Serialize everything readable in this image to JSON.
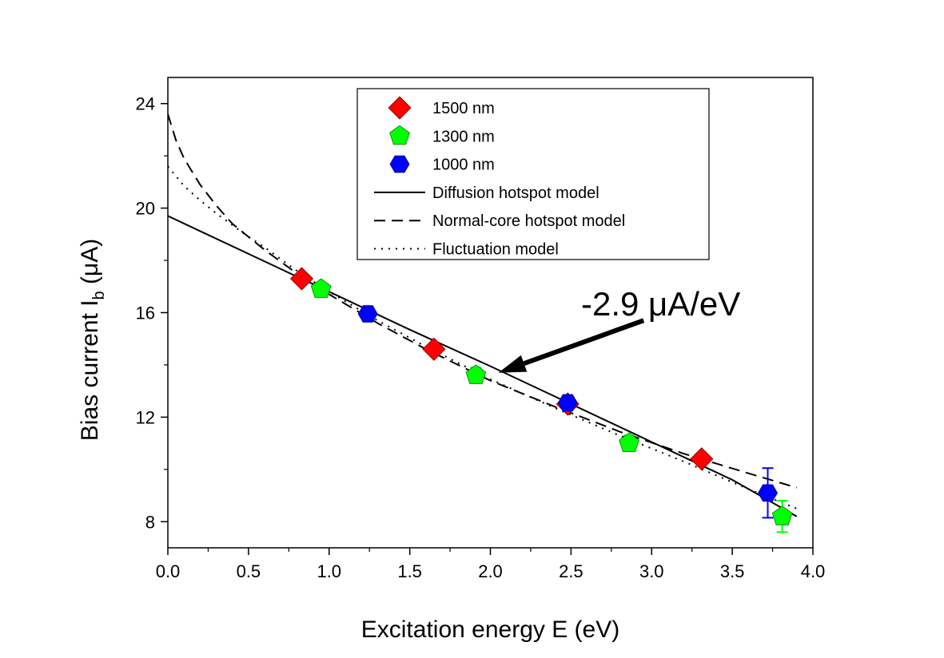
{
  "chart_data": {
    "type": "scatter",
    "title": "",
    "xlabel": "Excitation energy E (eV)",
    "ylabel_main": "Bias current I",
    "ylabel_sub": "b",
    "ylabel_unit": " (μA)",
    "xlim": [
      0.0,
      4.0
    ],
    "ylim": [
      7.0,
      25.0
    ],
    "xticks": [
      0.0,
      0.5,
      1.0,
      1.5,
      2.0,
      2.5,
      3.0,
      3.5,
      4.0
    ],
    "xtick_labels": [
      "0.0",
      "0.5",
      "1.0",
      "1.5",
      "2.0",
      "2.5",
      "3.0",
      "3.5",
      "4.0"
    ],
    "yticks": [
      8,
      12,
      16,
      20,
      24
    ],
    "ytick_labels": [
      "8",
      "12",
      "16",
      "20",
      "24"
    ],
    "grid": false,
    "legend_position": "top-center",
    "series": [
      {
        "name": "1500 nm",
        "marker": "diamond",
        "color": "#ff0000",
        "x": [
          0.83,
          1.65,
          2.48,
          3.31
        ],
        "y": [
          17.3,
          14.6,
          12.5,
          10.4
        ],
        "yerr": [
          0.2,
          0.2,
          0.2,
          0.2
        ]
      },
      {
        "name": "1300 nm",
        "marker": "pentagon",
        "color": "#00ff00",
        "x": [
          0.95,
          1.91,
          2.86,
          3.81
        ],
        "y": [
          16.9,
          13.6,
          11.0,
          8.2
        ],
        "yerr": [
          0.2,
          0.3,
          0.3,
          0.6
        ]
      },
      {
        "name": "1000 nm",
        "marker": "hexagon",
        "color": "#0000ff",
        "x": [
          1.24,
          2.48,
          3.72
        ],
        "y": [
          15.95,
          12.55,
          9.1
        ],
        "yerr": [
          0.2,
          0.2,
          0.95
        ]
      }
    ],
    "models": [
      {
        "name": "Diffusion hotspot model",
        "style": "solid",
        "x": [
          0.0,
          0.5,
          1.0,
          1.5,
          2.0,
          2.5,
          3.0,
          3.5,
          3.9
        ],
        "y": [
          19.7,
          18.25,
          16.8,
          15.35,
          13.95,
          12.5,
          11.05,
          9.6,
          8.2
        ]
      },
      {
        "name": "Normal-core hotspot model",
        "style": "dashed",
        "x": [
          0.0,
          0.05,
          0.1,
          0.2,
          0.3,
          0.4,
          0.5,
          0.6,
          0.8,
          1.0,
          1.3,
          1.6,
          2.0,
          2.4,
          2.8,
          3.2,
          3.6,
          3.9
        ],
        "y": [
          23.6,
          22.6,
          21.9,
          20.9,
          20.1,
          19.4,
          18.9,
          18.4,
          17.5,
          16.7,
          15.6,
          14.6,
          13.4,
          12.4,
          11.45,
          10.6,
          9.85,
          9.3
        ],
        "label_x": 0.0
      },
      {
        "name": "Fluctuation model",
        "style": "dotted",
        "x": [
          0.0,
          0.1,
          0.2,
          0.3,
          0.4,
          0.5,
          0.6,
          0.8,
          1.0,
          1.3,
          1.6,
          2.0,
          2.4,
          2.8,
          3.2,
          3.6,
          3.9
        ],
        "y": [
          21.6,
          20.85,
          20.3,
          19.8,
          19.35,
          18.9,
          18.5,
          17.6,
          16.8,
          15.7,
          14.7,
          13.45,
          12.35,
          11.3,
          10.3,
          9.25,
          8.5
        ]
      }
    ],
    "annotation": {
      "text": "-2.9 μA/eV",
      "arrow_from": [
        2.95,
        15.7
      ],
      "arrow_to": [
        2.05,
        13.7
      ]
    }
  }
}
